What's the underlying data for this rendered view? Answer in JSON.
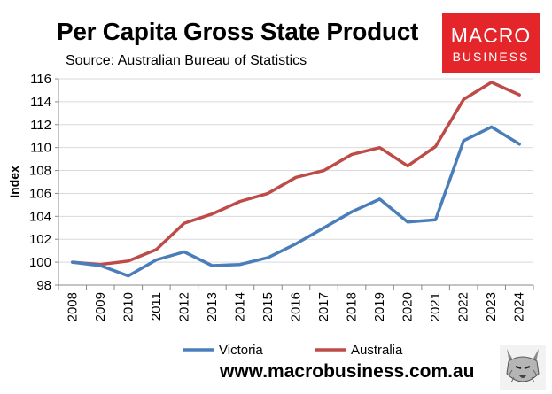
{
  "header": {
    "title": "Per Capita Gross State Product",
    "subtitle": "Source: Australian Bureau of Statistics"
  },
  "logo": {
    "line1": "MACRO",
    "line2": "BUSINESS",
    "color": "#e4262b"
  },
  "footer": {
    "url": "www.macrobusiness.com.au",
    "mascot_icon": "wolf-icon"
  },
  "chart_data": {
    "type": "line",
    "title": "Per Capita Gross State Product",
    "xlabel": "",
    "ylabel": "Index",
    "categories": [
      "2008",
      "2009",
      "2010",
      "2011",
      "2012",
      "2013",
      "2014",
      "2015",
      "2016",
      "2017",
      "2018",
      "2019",
      "2020",
      "2021",
      "2022",
      "2023",
      "2024"
    ],
    "ylim": [
      98,
      116
    ],
    "yticks": [
      98,
      100,
      102,
      104,
      106,
      108,
      110,
      112,
      114,
      116
    ],
    "grid": "horizontal",
    "legend": "bottom",
    "series": [
      {
        "name": "Victoria",
        "color": "#4a7ebb",
        "values": [
          100.0,
          99.7,
          98.8,
          100.2,
          100.9,
          99.7,
          99.8,
          100.4,
          101.6,
          103.0,
          104.4,
          105.5,
          103.5,
          103.7,
          110.6,
          111.8,
          110.3
        ]
      },
      {
        "name": "Australia",
        "color": "#be4b48",
        "values": [
          100.0,
          99.8,
          100.1,
          101.1,
          103.4,
          104.2,
          105.3,
          106.0,
          107.4,
          108.0,
          109.4,
          110.0,
          108.4,
          110.1,
          114.2,
          115.7,
          114.6
        ]
      }
    ]
  }
}
